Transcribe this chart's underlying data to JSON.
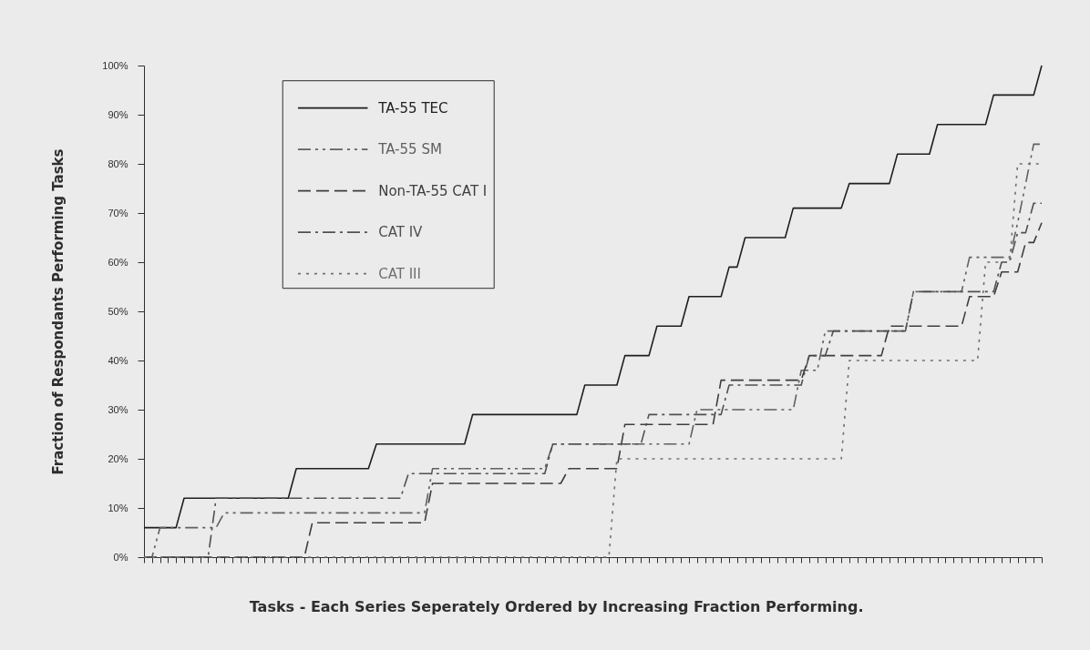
{
  "chart_data": {
    "type": "line",
    "xlabel": "Tasks - Each Series Seperately Ordered by Increasing Fraction Performing.",
    "ylabel": "Fraction of Respondants Performing Tasks",
    "categories": [
      null,
      null,
      null,
      null,
      null,
      null,
      null,
      null,
      null,
      null,
      null,
      null,
      null,
      null,
      null,
      null,
      null,
      null,
      null,
      null,
      null,
      null,
      null,
      null,
      null,
      null,
      null,
      null,
      null,
      null,
      null,
      null,
      null,
      null,
      null,
      null,
      null,
      null,
      null,
      null,
      null,
      null,
      null,
      null,
      null,
      null,
      null,
      null,
      null,
      null,
      null,
      null,
      null,
      null,
      null,
      null,
      null,
      null,
      null,
      null,
      null,
      null,
      null,
      null,
      null,
      null,
      null,
      null,
      null,
      null,
      null,
      null,
      null,
      null,
      null,
      null,
      null,
      null,
      null,
      null,
      null,
      null,
      null,
      null,
      null,
      null,
      null,
      null,
      null,
      null,
      null,
      null,
      null,
      null,
      null,
      null,
      null,
      null,
      null,
      null,
      null,
      null,
      null,
      null,
      null,
      null,
      null,
      null,
      null,
      null,
      null,
      null,
      null
    ],
    "series": [
      {
        "name": "TA-55 TEC",
        "color": "#1e1e1e",
        "line_style": "solid",
        "values": [
          6,
          6,
          6,
          6,
          6,
          12,
          12,
          12,
          12,
          12,
          12,
          12,
          12,
          12,
          12,
          12,
          12,
          12,
          12,
          18,
          18,
          18,
          18,
          18,
          18,
          18,
          18,
          18,
          18,
          23,
          23,
          23,
          23,
          23,
          23,
          23,
          23,
          23,
          23,
          23,
          23,
          29,
          29,
          29,
          29,
          29,
          29,
          29,
          29,
          29,
          29,
          29,
          29,
          29,
          29,
          35,
          35,
          35,
          35,
          35,
          41,
          41,
          41,
          41,
          47,
          47,
          47,
          47,
          53,
          53,
          53,
          53,
          53,
          59,
          59,
          65,
          65,
          65,
          65,
          65,
          65,
          71,
          71,
          71,
          71,
          71,
          71,
          71,
          76,
          76,
          76,
          76,
          76,
          76,
          82,
          82,
          82,
          82,
          82,
          88,
          88,
          88,
          88,
          88,
          88,
          88,
          94,
          94,
          94,
          94,
          94,
          94,
          100
        ]
      },
      {
        "name": "TA-55 SM",
        "color": "#606060",
        "line_style": "dashed",
        "values": [
          0,
          0,
          6,
          6,
          6,
          6,
          6,
          6,
          6,
          6,
          9,
          9,
          9,
          9,
          9,
          9,
          9,
          9,
          9,
          9,
          9,
          9,
          9,
          9,
          9,
          9,
          9,
          9,
          9,
          9,
          9,
          9,
          9,
          9,
          9,
          9,
          18,
          18,
          18,
          18,
          18,
          18,
          18,
          18,
          18,
          18,
          18,
          18,
          18,
          18,
          18,
          23,
          23,
          23,
          23,
          23,
          23,
          23,
          23,
          23,
          23,
          23,
          23,
          23,
          23,
          23,
          23,
          23,
          23,
          30,
          30,
          30,
          30,
          30,
          30,
          30,
          30,
          30,
          30,
          30,
          30,
          30,
          38,
          38,
          38,
          46,
          46,
          46,
          46,
          46,
          46,
          46,
          46,
          46,
          46,
          46,
          54,
          54,
          54,
          54,
          54,
          54,
          54,
          61,
          61,
          61,
          61,
          61,
          61,
          68,
          76,
          84,
          84
        ]
      },
      {
        "name": "Non-TA-55 CAT I",
        "color": "#3e3e3e",
        "line_style": "dashed",
        "values": [
          0,
          0,
          0,
          0,
          0,
          0,
          0,
          0,
          0,
          0,
          0,
          0,
          0,
          0,
          0,
          0,
          0,
          0,
          0,
          0,
          0,
          7,
          7,
          7,
          7,
          7,
          7,
          7,
          7,
          7,
          7,
          7,
          7,
          7,
          7,
          7,
          15,
          15,
          15,
          15,
          15,
          15,
          15,
          15,
          15,
          15,
          15,
          15,
          15,
          15,
          15,
          15,
          15,
          18,
          18,
          18,
          18,
          18,
          18,
          18,
          27,
          27,
          27,
          27,
          27,
          27,
          27,
          27,
          27,
          27,
          27,
          27,
          36,
          36,
          36,
          36,
          36,
          36,
          36,
          36,
          36,
          36,
          36,
          41,
          41,
          41,
          41,
          41,
          41,
          41,
          41,
          41,
          41,
          47,
          47,
          47,
          47,
          47,
          47,
          47,
          47,
          47,
          47,
          53,
          53,
          53,
          53,
          58,
          58,
          58,
          64,
          64,
          68
        ]
      },
      {
        "name": "CAT IV",
        "color": "#505050",
        "line_style": "dashed",
        "values": [
          0,
          0,
          0,
          0,
          0,
          0,
          0,
          0,
          0,
          12,
          12,
          12,
          12,
          12,
          12,
          12,
          12,
          12,
          12,
          12,
          12,
          12,
          12,
          12,
          12,
          12,
          12,
          12,
          12,
          12,
          12,
          12,
          12,
          17,
          17,
          17,
          17,
          17,
          17,
          17,
          17,
          17,
          17,
          17,
          17,
          17,
          17,
          17,
          17,
          17,
          17,
          23,
          23,
          23,
          23,
          23,
          23,
          23,
          23,
          23,
          23,
          23,
          23,
          29,
          29,
          29,
          29,
          29,
          29,
          29,
          29,
          29,
          29,
          35,
          35,
          35,
          35,
          35,
          35,
          35,
          35,
          35,
          35,
          41,
          41,
          41,
          46,
          46,
          46,
          46,
          46,
          46,
          46,
          46,
          46,
          46,
          54,
          54,
          54,
          54,
          54,
          54,
          54,
          54,
          54,
          54,
          54,
          60,
          60,
          66,
          66,
          72,
          72
        ]
      },
      {
        "name": "CAT III",
        "color": "#707070",
        "line_style": "dotted",
        "values": [
          0,
          0,
          0,
          0,
          0,
          0,
          0,
          0,
          0,
          0,
          0,
          0,
          0,
          0,
          0,
          0,
          0,
          0,
          0,
          0,
          0,
          0,
          0,
          0,
          0,
          0,
          0,
          0,
          0,
          0,
          0,
          0,
          0,
          0,
          0,
          0,
          0,
          0,
          0,
          0,
          0,
          0,
          0,
          0,
          0,
          0,
          0,
          0,
          0,
          0,
          0,
          0,
          0,
          0,
          0,
          0,
          0,
          0,
          0,
          20,
          20,
          20,
          20,
          20,
          20,
          20,
          20,
          20,
          20,
          20,
          20,
          20,
          20,
          20,
          20,
          20,
          20,
          20,
          20,
          20,
          20,
          20,
          20,
          20,
          20,
          20,
          20,
          20,
          40,
          40,
          40,
          40,
          40,
          40,
          40,
          40,
          40,
          40,
          40,
          40,
          40,
          40,
          40,
          40,
          40,
          60,
          60,
          60,
          60,
          80,
          80,
          80,
          80
        ]
      }
    ],
    "ylim": [
      0,
      100
    ],
    "yticks": [
      {
        "value": 0,
        "label": "0%"
      },
      {
        "value": 10,
        "label": "10%"
      },
      {
        "value": 20,
        "label": "20%"
      },
      {
        "value": 30,
        "label": "30%"
      },
      {
        "value": 40,
        "label": "40%"
      },
      {
        "value": 50,
        "label": "50%"
      },
      {
        "value": 60,
        "label": "60%"
      },
      {
        "value": 70,
        "label": "70%"
      },
      {
        "value": 80,
        "label": "80%"
      },
      {
        "value": 90,
        "label": "90%"
      },
      {
        "value": 100,
        "label": "100%"
      }
    ],
    "tick_labels": "y",
    "legend": "top left"
  }
}
